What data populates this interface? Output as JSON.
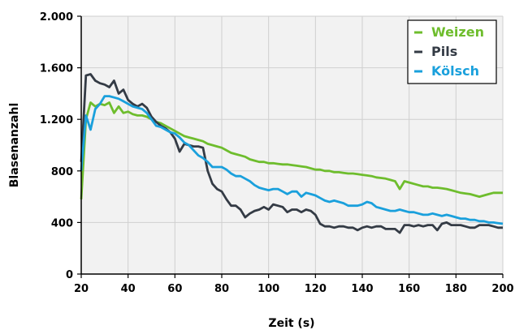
{
  "chart_data": {
    "type": "line",
    "title": "",
    "xlabel": "Zeit (s)",
    "ylabel": "Blasenanzahl",
    "xlim": [
      20,
      200
    ],
    "ylim": [
      0,
      2000
    ],
    "x_ticks": [
      20,
      40,
      60,
      80,
      100,
      120,
      140,
      160,
      180,
      200
    ],
    "y_ticks": [
      0,
      400,
      800,
      1200,
      1600,
      2000
    ],
    "x_tick_labels": [
      "20",
      "40",
      "60",
      "80",
      "100",
      "120",
      "140",
      "160",
      "180",
      "200"
    ],
    "y_tick_labels": [
      "0",
      "400",
      "800",
      "1.200",
      "1.600",
      "2.000"
    ],
    "grid": true,
    "legend_position": "top-right",
    "series": [
      {
        "name": "Weizen",
        "color": "#6ebd2d",
        "points": [
          [
            20,
            580
          ],
          [
            22,
            1200
          ],
          [
            24,
            1330
          ],
          [
            26,
            1300
          ],
          [
            28,
            1320
          ],
          [
            30,
            1310
          ],
          [
            32,
            1330
          ],
          [
            34,
            1250
          ],
          [
            36,
            1300
          ],
          [
            38,
            1250
          ],
          [
            40,
            1260
          ],
          [
            42,
            1240
          ],
          [
            44,
            1230
          ],
          [
            46,
            1230
          ],
          [
            48,
            1220
          ],
          [
            50,
            1200
          ],
          [
            52,
            1180
          ],
          [
            54,
            1170
          ],
          [
            56,
            1150
          ],
          [
            58,
            1130
          ],
          [
            60,
            1110
          ],
          [
            62,
            1090
          ],
          [
            64,
            1070
          ],
          [
            66,
            1060
          ],
          [
            68,
            1050
          ],
          [
            70,
            1040
          ],
          [
            72,
            1030
          ],
          [
            74,
            1010
          ],
          [
            76,
            1000
          ],
          [
            78,
            990
          ],
          [
            80,
            980
          ],
          [
            82,
            960
          ],
          [
            84,
            940
          ],
          [
            86,
            930
          ],
          [
            88,
            920
          ],
          [
            90,
            910
          ],
          [
            92,
            890
          ],
          [
            94,
            880
          ],
          [
            96,
            870
          ],
          [
            98,
            870
          ],
          [
            100,
            860
          ],
          [
            102,
            860
          ],
          [
            104,
            855
          ],
          [
            106,
            850
          ],
          [
            108,
            850
          ],
          [
            110,
            845
          ],
          [
            112,
            840
          ],
          [
            114,
            835
          ],
          [
            116,
            830
          ],
          [
            118,
            820
          ],
          [
            120,
            810
          ],
          [
            122,
            810
          ],
          [
            124,
            800
          ],
          [
            126,
            800
          ],
          [
            128,
            790
          ],
          [
            130,
            790
          ],
          [
            132,
            785
          ],
          [
            134,
            780
          ],
          [
            136,
            780
          ],
          [
            138,
            775
          ],
          [
            140,
            770
          ],
          [
            142,
            765
          ],
          [
            144,
            760
          ],
          [
            146,
            750
          ],
          [
            148,
            745
          ],
          [
            150,
            740
          ],
          [
            152,
            730
          ],
          [
            154,
            720
          ],
          [
            156,
            660
          ],
          [
            158,
            720
          ],
          [
            160,
            710
          ],
          [
            162,
            700
          ],
          [
            164,
            690
          ],
          [
            166,
            680
          ],
          [
            168,
            680
          ],
          [
            170,
            670
          ],
          [
            172,
            670
          ],
          [
            174,
            665
          ],
          [
            176,
            660
          ],
          [
            178,
            650
          ],
          [
            180,
            640
          ],
          [
            182,
            630
          ],
          [
            184,
            625
          ],
          [
            186,
            620
          ],
          [
            188,
            610
          ],
          [
            190,
            600
          ],
          [
            192,
            610
          ],
          [
            194,
            620
          ],
          [
            196,
            630
          ],
          [
            198,
            630
          ],
          [
            200,
            630
          ]
        ]
      },
      {
        "name": "Pils",
        "color": "#343b45",
        "points": [
          [
            20,
            870
          ],
          [
            22,
            1540
          ],
          [
            24,
            1550
          ],
          [
            26,
            1500
          ],
          [
            28,
            1480
          ],
          [
            30,
            1470
          ],
          [
            32,
            1450
          ],
          [
            34,
            1500
          ],
          [
            36,
            1400
          ],
          [
            38,
            1430
          ],
          [
            40,
            1350
          ],
          [
            42,
            1320
          ],
          [
            44,
            1300
          ],
          [
            46,
            1320
          ],
          [
            48,
            1290
          ],
          [
            50,
            1220
          ],
          [
            52,
            1180
          ],
          [
            54,
            1150
          ],
          [
            56,
            1130
          ],
          [
            58,
            1100
          ],
          [
            60,
            1050
          ],
          [
            62,
            950
          ],
          [
            64,
            1010
          ],
          [
            66,
            1000
          ],
          [
            68,
            990
          ],
          [
            70,
            990
          ],
          [
            72,
            980
          ],
          [
            74,
            800
          ],
          [
            76,
            700
          ],
          [
            78,
            660
          ],
          [
            80,
            640
          ],
          [
            82,
            580
          ],
          [
            84,
            530
          ],
          [
            86,
            530
          ],
          [
            88,
            500
          ],
          [
            90,
            440
          ],
          [
            92,
            470
          ],
          [
            94,
            490
          ],
          [
            96,
            500
          ],
          [
            98,
            520
          ],
          [
            100,
            500
          ],
          [
            102,
            540
          ],
          [
            104,
            530
          ],
          [
            106,
            520
          ],
          [
            108,
            480
          ],
          [
            110,
            500
          ],
          [
            112,
            500
          ],
          [
            114,
            480
          ],
          [
            116,
            500
          ],
          [
            118,
            490
          ],
          [
            120,
            460
          ],
          [
            122,
            390
          ],
          [
            124,
            370
          ],
          [
            126,
            370
          ],
          [
            128,
            360
          ],
          [
            130,
            370
          ],
          [
            132,
            370
          ],
          [
            134,
            360
          ],
          [
            136,
            360
          ],
          [
            138,
            340
          ],
          [
            140,
            360
          ],
          [
            142,
            370
          ],
          [
            144,
            360
          ],
          [
            146,
            370
          ],
          [
            148,
            370
          ],
          [
            150,
            350
          ],
          [
            152,
            350
          ],
          [
            154,
            350
          ],
          [
            156,
            320
          ],
          [
            158,
            380
          ],
          [
            160,
            380
          ],
          [
            162,
            370
          ],
          [
            164,
            380
          ],
          [
            166,
            370
          ],
          [
            168,
            380
          ],
          [
            170,
            380
          ],
          [
            172,
            340
          ],
          [
            174,
            390
          ],
          [
            176,
            400
          ],
          [
            178,
            380
          ],
          [
            180,
            380
          ],
          [
            182,
            380
          ],
          [
            184,
            370
          ],
          [
            186,
            360
          ],
          [
            188,
            360
          ],
          [
            190,
            380
          ],
          [
            192,
            380
          ],
          [
            194,
            380
          ],
          [
            196,
            370
          ],
          [
            198,
            360
          ],
          [
            200,
            360
          ]
        ]
      },
      {
        "name": "Kölsch",
        "color": "#1aa0dc",
        "points": [
          [
            20,
            800
          ],
          [
            22,
            1230
          ],
          [
            24,
            1120
          ],
          [
            26,
            1280
          ],
          [
            28,
            1320
          ],
          [
            30,
            1380
          ],
          [
            32,
            1380
          ],
          [
            34,
            1370
          ],
          [
            36,
            1360
          ],
          [
            38,
            1340
          ],
          [
            40,
            1320
          ],
          [
            42,
            1300
          ],
          [
            44,
            1290
          ],
          [
            46,
            1280
          ],
          [
            48,
            1250
          ],
          [
            50,
            1200
          ],
          [
            52,
            1150
          ],
          [
            54,
            1140
          ],
          [
            56,
            1120
          ],
          [
            58,
            1100
          ],
          [
            60,
            1090
          ],
          [
            62,
            1060
          ],
          [
            64,
            1020
          ],
          [
            66,
            1000
          ],
          [
            68,
            960
          ],
          [
            70,
            920
          ],
          [
            72,
            900
          ],
          [
            74,
            870
          ],
          [
            76,
            830
          ],
          [
            78,
            830
          ],
          [
            80,
            830
          ],
          [
            82,
            810
          ],
          [
            84,
            780
          ],
          [
            86,
            760
          ],
          [
            88,
            760
          ],
          [
            90,
            740
          ],
          [
            92,
            720
          ],
          [
            94,
            690
          ],
          [
            96,
            670
          ],
          [
            98,
            660
          ],
          [
            100,
            650
          ],
          [
            102,
            660
          ],
          [
            104,
            660
          ],
          [
            106,
            640
          ],
          [
            108,
            620
          ],
          [
            110,
            640
          ],
          [
            112,
            640
          ],
          [
            114,
            600
          ],
          [
            116,
            630
          ],
          [
            118,
            620
          ],
          [
            120,
            610
          ],
          [
            122,
            590
          ],
          [
            124,
            570
          ],
          [
            126,
            560
          ],
          [
            128,
            570
          ],
          [
            130,
            560
          ],
          [
            132,
            550
          ],
          [
            134,
            530
          ],
          [
            136,
            530
          ],
          [
            138,
            530
          ],
          [
            140,
            540
          ],
          [
            142,
            560
          ],
          [
            144,
            550
          ],
          [
            146,
            520
          ],
          [
            148,
            510
          ],
          [
            150,
            500
          ],
          [
            152,
            490
          ],
          [
            154,
            490
          ],
          [
            156,
            500
          ],
          [
            158,
            490
          ],
          [
            160,
            480
          ],
          [
            162,
            480
          ],
          [
            164,
            470
          ],
          [
            166,
            460
          ],
          [
            168,
            460
          ],
          [
            170,
            470
          ],
          [
            172,
            460
          ],
          [
            174,
            450
          ],
          [
            176,
            460
          ],
          [
            178,
            450
          ],
          [
            180,
            440
          ],
          [
            182,
            430
          ],
          [
            184,
            430
          ],
          [
            186,
            420
          ],
          [
            188,
            420
          ],
          [
            190,
            410
          ],
          [
            192,
            410
          ],
          [
            194,
            400
          ],
          [
            196,
            400
          ],
          [
            198,
            395
          ],
          [
            200,
            390
          ]
        ]
      }
    ]
  }
}
